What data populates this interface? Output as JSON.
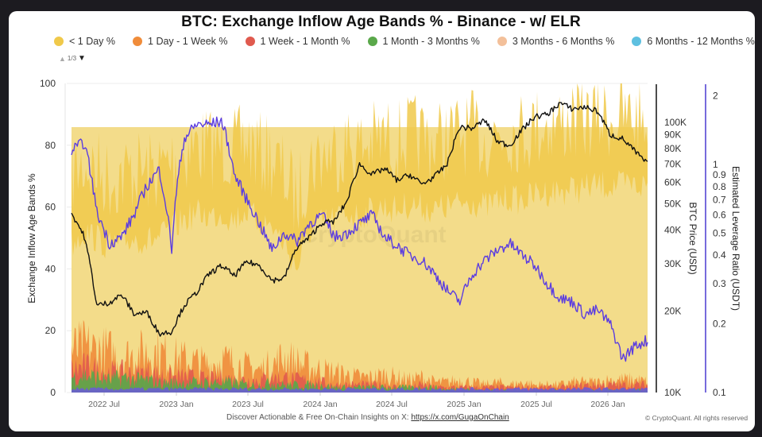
{
  "title": "BTC: Exchange Inflow Age Bands % - Binance - w/ ELR",
  "legend": {
    "items": [
      {
        "label": "< 1 Day %",
        "color": "#f0c94a"
      },
      {
        "label": "1 Day - 1 Week %",
        "color": "#f08c3a"
      },
      {
        "label": "1 Week - 1 Month %",
        "color": "#e05a4e"
      },
      {
        "label": "1 Month - 3 Months %",
        "color": "#5aa84a"
      },
      {
        "label": "3 Months - 6 Months %",
        "color": "#f3c09a"
      },
      {
        "label": "6 Months - 12 Months %",
        "color": "#5ec0e0"
      }
    ],
    "pager": {
      "text": "1/3",
      "up": "▲",
      "down": "▼"
    }
  },
  "footer": {
    "text": "Discover Actionable & Free On-Chain Insights on X: ",
    "link": "https://x.com/GugaOnChain",
    "copyright": "© CryptoQuant. All rights reserved"
  },
  "watermark": "CryptoQuant",
  "chart_data": {
    "type": "area",
    "title": "BTC: Exchange Inflow Age Bands % - Binance - w/ ELR",
    "xlabel": "",
    "ylabel": "Exchange Inflow Age Bands %",
    "ylim": [
      0,
      100
    ],
    "y_ticks": [
      0,
      20,
      40,
      60,
      80,
      100
    ],
    "x_ticks": [
      "2022 Jul",
      "2023 Jan",
      "2023 Jul",
      "2024 Jan",
      "2024 Jul",
      "2025 Jan",
      "2025 Jul",
      "2026 Jan"
    ],
    "x_range": [
      "2022 Apr",
      "2026 Feb"
    ],
    "secondary_axes": [
      {
        "label": "BTC Price (USD)",
        "scale": "log",
        "range": [
          10000,
          140000
        ],
        "ticks": [
          "10K",
          "20K",
          "30K",
          "40K",
          "50K",
          "60K",
          "70K",
          "80K",
          "90K",
          "100K"
        ]
      },
      {
        "label": "Estimated Leverage Ratio (USDT)",
        "scale": "log",
        "range": [
          0.1,
          2.2
        ],
        "ticks": [
          "0.1",
          "0.2",
          "0.3",
          "0.4",
          "0.5",
          "0.6",
          "0.7",
          "0.8",
          "0.9",
          "1",
          "2"
        ]
      }
    ],
    "legend_position": "top",
    "grid": true,
    "x": [
      "2022-04",
      "2022-05",
      "2022-06",
      "2022-07",
      "2022-08",
      "2022-09",
      "2022-10",
      "2022-11",
      "2022-12",
      "2023-01",
      "2023-02",
      "2023-03",
      "2023-04",
      "2023-05",
      "2023-06",
      "2023-07",
      "2023-08",
      "2023-09",
      "2023-10",
      "2023-11",
      "2023-12",
      "2024-01",
      "2024-02",
      "2024-03",
      "2024-04",
      "2024-05",
      "2024-06",
      "2024-07",
      "2024-08",
      "2024-09",
      "2024-10",
      "2024-11",
      "2024-12",
      "2025-01",
      "2025-02",
      "2025-03",
      "2025-04",
      "2025-05",
      "2025-06",
      "2025-07",
      "2025-08",
      "2025-09",
      "2025-10",
      "2025-11",
      "2025-12",
      "2026-01",
      "2026-02"
    ],
    "series": [
      {
        "name": "< 1 Day % (peak)",
        "axis": "left",
        "color": "#f0c94a",
        "values": [
          78,
          82,
          80,
          77,
          78,
          80,
          79,
          80,
          83,
          86,
          88,
          87,
          88,
          86,
          89,
          85,
          84,
          78,
          70,
          82,
          85,
          86,
          88,
          87,
          89,
          90,
          89,
          91,
          90,
          89,
          90,
          91,
          92,
          90,
          92,
          93,
          92,
          94,
          95,
          95,
          96,
          96,
          97,
          97,
          97,
          97,
          97
        ]
      },
      {
        "name": "1 Day - 1 Week % (peak)",
        "axis": "left",
        "color": "#f08c3a",
        "values": [
          17,
          18,
          17,
          16,
          14,
          15,
          16,
          16,
          14,
          13,
          12,
          11,
          13,
          12,
          10,
          9,
          11,
          14,
          12,
          10,
          9,
          8,
          7,
          6,
          6,
          7,
          6,
          5,
          6,
          4,
          4,
          5,
          4,
          3,
          4,
          3,
          4,
          3,
          3,
          3,
          4,
          4,
          4,
          5,
          5,
          5,
          4
        ]
      },
      {
        "name": "1 Week - 1 Month % (peak)",
        "axis": "left",
        "color": "#e05a4e",
        "values": [
          9,
          10,
          9,
          8,
          8,
          7,
          8,
          7,
          6,
          6,
          6,
          5,
          6,
          5,
          5,
          5,
          6,
          6,
          5,
          5,
          4,
          3,
          3,
          3,
          3,
          3,
          2,
          2,
          3,
          2,
          2,
          2,
          2,
          2,
          2,
          2,
          2,
          2,
          2,
          2,
          2,
          3,
          3,
          3,
          3,
          3,
          3
        ]
      },
      {
        "name": "1 Month - 3 Months % (peak)",
        "axis": "left",
        "color": "#5aa84a",
        "values": [
          6,
          7,
          6,
          5,
          6,
          5,
          5,
          4,
          4,
          4,
          4,
          4,
          4,
          4,
          3,
          3,
          4,
          3,
          3,
          3,
          3,
          2,
          2,
          2,
          2,
          2,
          2,
          2,
          2,
          2,
          1,
          2,
          1,
          1,
          1,
          1,
          1,
          1,
          1,
          1,
          1,
          1,
          1,
          1,
          1,
          1,
          1
        ]
      },
      {
        "name": "BTC Price (USD)",
        "axis": "btc_price",
        "color": "#111111",
        "values": [
          46000,
          38000,
          21000,
          21500,
          23000,
          19500,
          19800,
          16500,
          16800,
          21000,
          23500,
          27500,
          29500,
          27000,
          30500,
          29500,
          26000,
          26500,
          34500,
          37500,
          42500,
          43000,
          51000,
          70000,
          64000,
          67500,
          61000,
          64000,
          59000,
          63000,
          70000,
          96000,
          95000,
          102000,
          85000,
          82000,
          94000,
          105000,
          107000,
          118000,
          112000,
          114000,
          110000,
          90000,
          87000,
          78000,
          70000
        ]
      },
      {
        "name": "Estimated Leverage Ratio (USDT)",
        "axis": "elr",
        "color": "#5b3de0",
        "values": [
          1.15,
          1.25,
          0.62,
          0.45,
          0.48,
          0.6,
          0.8,
          0.95,
          0.42,
          1.3,
          1.5,
          1.5,
          1.55,
          0.9,
          0.7,
          0.55,
          0.42,
          0.5,
          0.46,
          0.55,
          0.6,
          0.48,
          0.5,
          0.55,
          0.6,
          0.48,
          0.44,
          0.4,
          0.38,
          0.33,
          0.28,
          0.25,
          0.33,
          0.38,
          0.42,
          0.45,
          0.4,
          0.36,
          0.3,
          0.26,
          0.25,
          0.22,
          0.23,
          0.2,
          0.14,
          0.16,
          0.17
        ]
      }
    ]
  }
}
